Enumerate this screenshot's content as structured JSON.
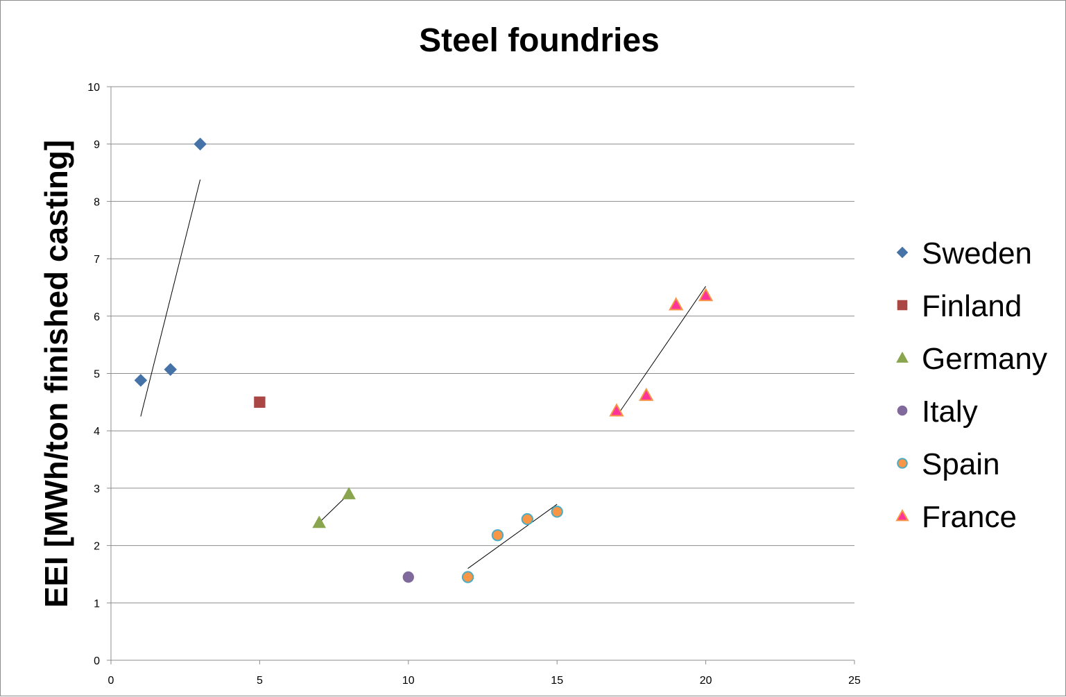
{
  "chart_data": {
    "type": "scatter",
    "title": "Steel foundries",
    "xlabel": "",
    "ylabel": "EEI [MWh/ton finished casting]",
    "xlim": [
      0,
      25
    ],
    "ylim": [
      0,
      10
    ],
    "x_ticks": [
      "0",
      "5",
      "10",
      "15",
      "20",
      "25"
    ],
    "y_ticks": [
      "0",
      "1",
      "2",
      "3",
      "4",
      "5",
      "6",
      "7",
      "8",
      "9",
      "10"
    ],
    "grid": "horizontal",
    "legend_position": "right",
    "series": [
      {
        "name": "Sweden",
        "marker": "diamond",
        "color": "#4572A7",
        "points": [
          [
            1,
            4.88
          ],
          [
            2,
            5.07
          ],
          [
            3,
            9.0
          ]
        ],
        "trendline": [
          [
            1,
            4.25
          ],
          [
            3,
            8.38
          ]
        ]
      },
      {
        "name": "Finland",
        "marker": "square",
        "color": "#AA4643",
        "points": [
          [
            5,
            4.5
          ]
        ]
      },
      {
        "name": "Germany",
        "marker": "triangle",
        "color": "#89A54E",
        "points": [
          [
            7,
            2.4
          ],
          [
            8,
            2.9
          ]
        ],
        "trendline": [
          [
            7,
            2.4
          ],
          [
            8,
            2.9
          ]
        ]
      },
      {
        "name": "Italy",
        "marker": "circle",
        "color": "#80699B",
        "points": [
          [
            10,
            1.45
          ]
        ]
      },
      {
        "name": "Spain",
        "marker": "circle",
        "color": "#F79646",
        "edge_color": "#4BACC6",
        "points": [
          [
            12,
            1.45
          ],
          [
            13,
            2.18
          ],
          [
            14,
            2.46
          ],
          [
            15,
            2.59
          ]
        ],
        "trendline": [
          [
            12,
            1.6
          ],
          [
            15,
            2.72
          ]
        ]
      },
      {
        "name": "France",
        "marker": "triangle",
        "color": "#FF3399",
        "edge_color": "#F79646",
        "points": [
          [
            17,
            4.35
          ],
          [
            18,
            4.62
          ],
          [
            19,
            6.2
          ],
          [
            20,
            6.36
          ]
        ],
        "trendline": [
          [
            17,
            4.25
          ],
          [
            20,
            6.52
          ]
        ]
      }
    ]
  }
}
